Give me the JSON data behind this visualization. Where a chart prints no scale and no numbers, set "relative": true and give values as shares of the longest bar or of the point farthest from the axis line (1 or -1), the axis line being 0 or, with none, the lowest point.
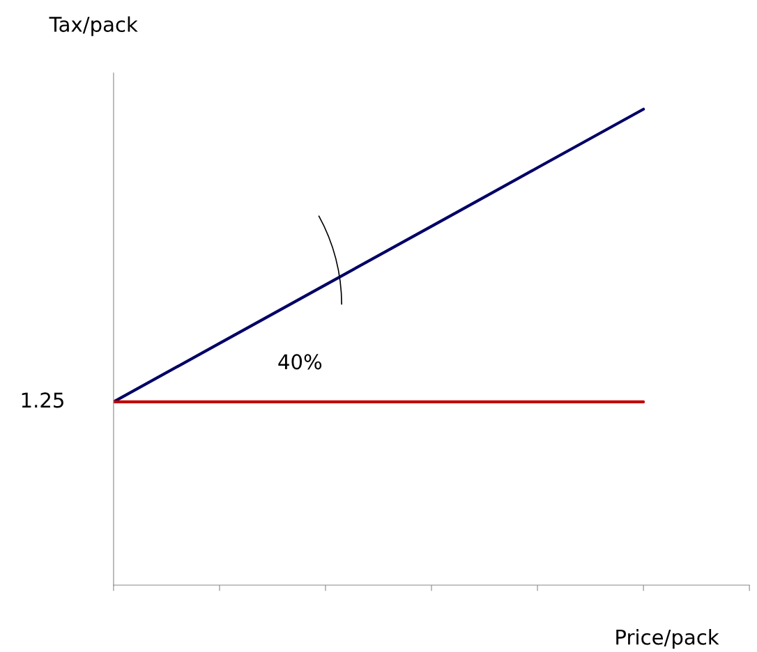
{
  "chart_data": {
    "type": "line",
    "relative": true,
    "xlabel": "Price/pack",
    "ylabel": "Tax/pack",
    "categories": [
      null,
      null,
      null,
      null,
      null,
      null,
      null
    ],
    "series": [
      {
        "color": "#000066",
        "values": [
          0.385,
          0.508,
          0.631,
          0.754,
          0.877,
          1.0,
          null
        ]
      },
      {
        "color": "#c00000",
        "values": [
          0.385,
          0.385,
          0.385,
          0.385,
          0.385,
          0.385,
          null
        ]
      }
    ],
    "annotations": [
      "40%",
      "1.25"
    ],
    "grid": false,
    "marker": "none",
    "line_style": "solid"
  }
}
